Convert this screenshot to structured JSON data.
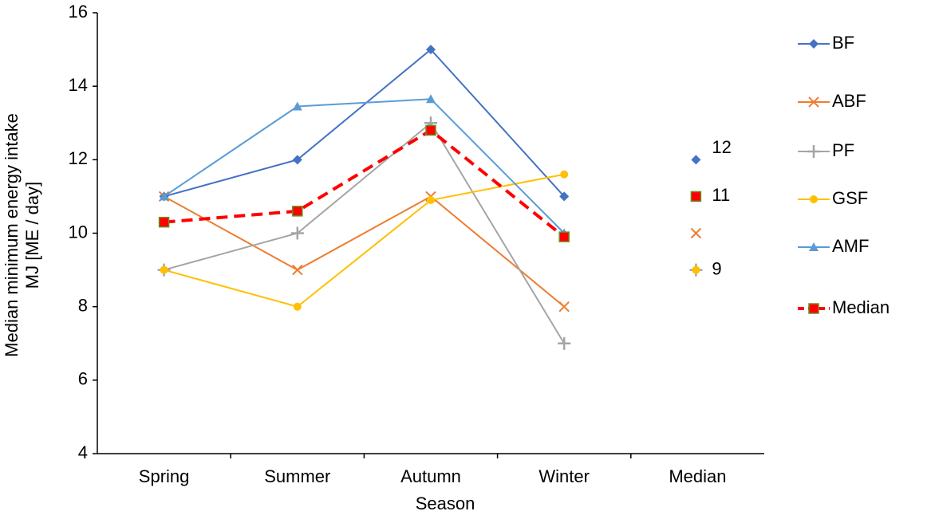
{
  "chart_data": {
    "type": "line",
    "xlabel": "Season",
    "ylabel": [
      "Median minimum energy intake",
      "MJ [ME / day]"
    ],
    "categories": [
      "Spring",
      "Summer",
      "Autumn",
      "Winter",
      "Median"
    ],
    "ylim": [
      4,
      16
    ],
    "yticks": [
      4,
      6,
      8,
      10,
      12,
      14,
      16
    ],
    "series": [
      {
        "name": "BF",
        "color": "#4472c4",
        "marker": "diamond",
        "values": [
          11,
          12,
          15,
          11,
          12
        ]
      },
      {
        "name": "ABF",
        "color": "#ed7d31",
        "marker": "x",
        "values": [
          11,
          9,
          11,
          8,
          10
        ]
      },
      {
        "name": "PF",
        "color": "#a5a5a5",
        "marker": "plus",
        "values": [
          9,
          10,
          13,
          7,
          9
        ]
      },
      {
        "name": "GSF",
        "color": "#ffc000",
        "marker": "circle",
        "values": [
          9,
          8,
          10.9,
          11.6,
          9
        ]
      },
      {
        "name": "AMF",
        "color": "#5b9bd5",
        "marker": "triangle",
        "values": [
          11,
          13.45,
          13.65,
          10,
          null
        ]
      },
      {
        "name": "Median",
        "color": "#ff0000",
        "marker": "square",
        "dashed": true,
        "values": [
          10.3,
          10.6,
          12.8,
          9.9,
          11
        ]
      }
    ]
  }
}
